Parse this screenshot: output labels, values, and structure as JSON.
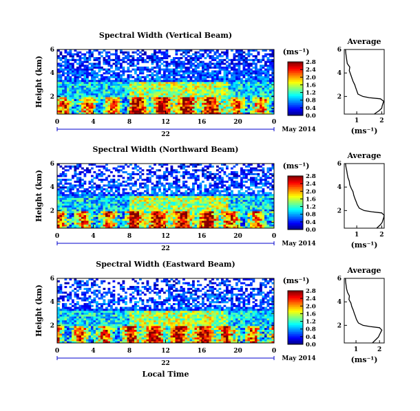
{
  "figure": {
    "xlabel": "Local Time",
    "date_label": "May 2014",
    "day_label": "22"
  },
  "chart_data": [
    {
      "type": "heatmap",
      "title": "Spectral Width (Vertical Beam)",
      "ylabel": "Height (km)",
      "xlim": [
        0,
        24
      ],
      "ylim": [
        0.5,
        6
      ],
      "xticks": [
        "0",
        "4",
        "8",
        "12",
        "16",
        "20",
        "0"
      ],
      "yticks": [
        "2",
        "4",
        "6"
      ],
      "colorbar": {
        "unit": "(ms⁻¹)",
        "min": 0.0,
        "max": 2.8,
        "ticks": [
          "0.0",
          "0.4",
          "0.8",
          "1.2",
          "1.6",
          "2.0",
          "2.4",
          "2.8"
        ]
      },
      "profile": {
        "title": "Average",
        "xlabel": "(ms⁻¹)",
        "xlim": [
          0.5,
          2.1
        ],
        "xticks": [
          "1",
          "2"
        ],
        "yticks": [
          "2",
          "4",
          "6"
        ],
        "height": [
          0.5,
          0.8,
          1.0,
          1.2,
          1.4,
          1.6,
          1.8,
          1.9,
          2.0,
          2.2,
          2.5,
          2.8,
          3.0,
          3.3,
          3.6,
          3.9,
          4.2,
          4.5,
          4.8,
          5.1,
          5.4,
          5.7,
          6.0
        ],
        "width": [
          1.7,
          1.9,
          2.0,
          2.02,
          2.05,
          2.08,
          1.95,
          1.5,
          1.25,
          1.05,
          1.0,
          0.95,
          0.92,
          0.85,
          0.8,
          0.75,
          0.7,
          0.72,
          0.62,
          0.6,
          0.58,
          0.56,
          0.55
        ]
      }
    },
    {
      "type": "heatmap",
      "title": "Spectral Width (Northward Beam)",
      "ylabel": "Height (km)",
      "xlim": [
        0,
        24
      ],
      "ylim": [
        0.5,
        6
      ],
      "xticks": [
        "0",
        "4",
        "8",
        "12",
        "16",
        "20",
        "0"
      ],
      "yticks": [
        "2",
        "4",
        "6"
      ],
      "colorbar": {
        "unit": "(ms⁻¹)",
        "min": 0.0,
        "max": 2.8,
        "ticks": [
          "0.0",
          "0.4",
          "0.8",
          "1.2",
          "1.6",
          "2.0",
          "2.4",
          "2.8"
        ]
      },
      "profile": {
        "title": "Average",
        "xlabel": "(ms⁻¹)",
        "xlim": [
          0.5,
          2.1
        ],
        "xticks": [
          "1",
          "2"
        ],
        "yticks": [
          "2",
          "4",
          "6"
        ],
        "height": [
          0.5,
          0.8,
          1.0,
          1.2,
          1.4,
          1.6,
          1.8,
          1.9,
          2.0,
          2.2,
          2.5,
          2.8,
          3.0,
          3.3,
          3.6,
          3.9,
          4.2,
          4.5,
          4.8,
          5.1,
          5.4,
          5.7,
          6.0
        ],
        "width": [
          1.8,
          1.95,
          2.02,
          2.05,
          2.08,
          2.1,
          2.0,
          1.6,
          1.3,
          1.1,
          1.02,
          0.97,
          0.93,
          0.88,
          0.85,
          0.78,
          0.72,
          0.7,
          0.65,
          0.62,
          0.6,
          0.57,
          0.55
        ]
      }
    },
    {
      "type": "heatmap",
      "title": "Spectral Width (Eastward Beam)",
      "ylabel": "Height (km)",
      "xlim": [
        0,
        24
      ],
      "ylim": [
        0.5,
        6
      ],
      "xticks": [
        "0",
        "4",
        "8",
        "12",
        "16",
        "20",
        "0"
      ],
      "yticks": [
        "2",
        "4",
        "6"
      ],
      "colorbar": {
        "unit": "(ms⁻¹)",
        "min": 0.0,
        "max": 2.8,
        "ticks": [
          "0.0",
          "0.4",
          "0.8",
          "1.2",
          "1.6",
          "2.0",
          "2.4",
          "2.8"
        ]
      },
      "profile": {
        "title": "Average",
        "xlabel": "(ms⁻¹)",
        "xlim": [
          0.5,
          2.2
        ],
        "xticks": [
          "1",
          "2"
        ],
        "yticks": [
          "2",
          "4",
          "6"
        ],
        "height": [
          0.5,
          0.8,
          1.0,
          1.2,
          1.4,
          1.6,
          1.8,
          1.9,
          2.0,
          2.2,
          2.5,
          2.8,
          3.0,
          3.3,
          3.6,
          3.9,
          4.2,
          4.5,
          4.8,
          5.1,
          5.4,
          5.7,
          6.0
        ],
        "width": [
          1.7,
          1.85,
          1.95,
          2.0,
          2.05,
          2.1,
          2.0,
          1.6,
          1.3,
          1.1,
          1.02,
          0.97,
          0.93,
          0.88,
          0.82,
          0.78,
          0.7,
          0.72,
          0.64,
          0.6,
          0.58,
          0.56,
          0.55
        ]
      }
    }
  ]
}
